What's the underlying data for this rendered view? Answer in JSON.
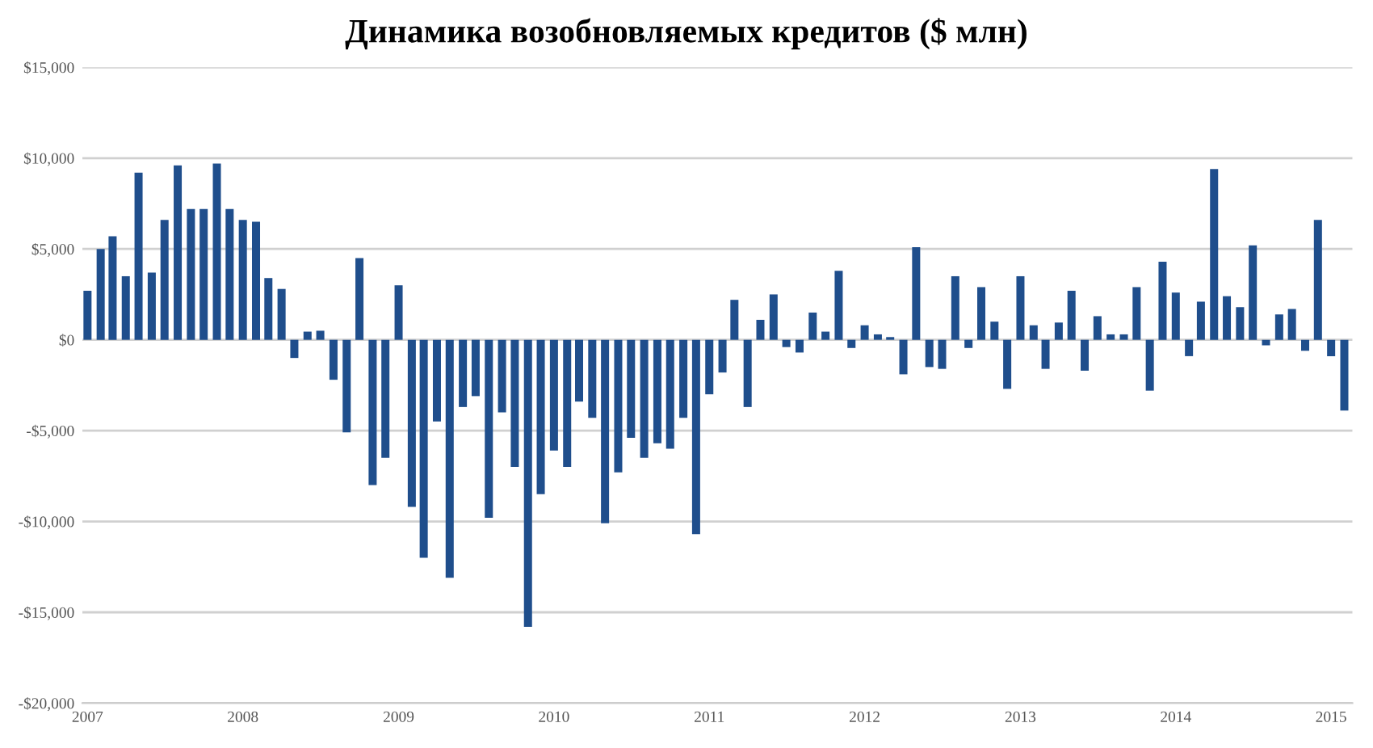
{
  "chart_data": {
    "type": "bar",
    "title": "Динамика возобновляемых кредитов ($ млн)",
    "x": [
      "2007-01",
      "2007-02",
      "2007-03",
      "2007-04",
      "2007-05",
      "2007-06",
      "2007-07",
      "2007-08",
      "2007-09",
      "2007-10",
      "2007-11",
      "2007-12",
      "2008-01",
      "2008-02",
      "2008-03",
      "2008-04",
      "2008-05",
      "2008-06",
      "2008-07",
      "2008-08",
      "2008-09",
      "2008-10",
      "2008-11",
      "2008-12",
      "2009-01",
      "2009-02",
      "2009-03",
      "2009-04",
      "2009-05",
      "2009-06",
      "2009-07",
      "2009-08",
      "2009-09",
      "2009-10",
      "2009-11",
      "2009-12",
      "2010-01",
      "2010-02",
      "2010-03",
      "2010-04",
      "2010-05",
      "2010-06",
      "2010-07",
      "2010-08",
      "2010-09",
      "2010-10",
      "2010-11",
      "2010-12",
      "2011-01",
      "2011-02",
      "2011-03",
      "2011-04",
      "2011-05",
      "2011-06",
      "2011-07",
      "2011-08",
      "2011-09",
      "2011-10",
      "2011-11",
      "2011-12",
      "2012-01",
      "2012-02",
      "2012-03",
      "2012-04",
      "2012-05",
      "2012-06",
      "2012-07",
      "2012-08",
      "2012-09",
      "2012-10",
      "2012-11",
      "2012-12",
      "2013-01",
      "2013-02",
      "2013-03",
      "2013-04",
      "2013-05",
      "2013-06",
      "2013-07",
      "2013-08",
      "2013-09",
      "2013-10",
      "2013-11",
      "2013-12",
      "2014-01",
      "2014-02",
      "2014-03",
      "2014-04",
      "2014-05",
      "2014-06",
      "2014-07",
      "2014-08",
      "2014-09",
      "2014-10",
      "2014-11",
      "2014-12",
      "2015-01",
      "2015-02"
    ],
    "series": [
      {
        "color": "#1f4e8c",
        "values": [
          2700,
          5000,
          5700,
          3500,
          9200,
          3700,
          6600,
          9600,
          7200,
          7200,
          9700,
          7200,
          6600,
          6500,
          3400,
          2800,
          -1000,
          450,
          500,
          -2200,
          -5100,
          4500,
          -8000,
          -6500,
          3000,
          -9200,
          -12000,
          -4500,
          -13100,
          -3700,
          -3100,
          -9800,
          -4000,
          -7000,
          -15800,
          -8500,
          -6100,
          -7000,
          -3400,
          -4300,
          -10100,
          -7300,
          -5400,
          -6500,
          -5700,
          -6000,
          -4300,
          -10700,
          -3000,
          -1800,
          2200,
          -3700,
          1100,
          2500,
          -400,
          -700,
          1500,
          450,
          3800,
          -450,
          800,
          300,
          150,
          -1900,
          5100,
          -1500,
          -1600,
          3500,
          -450,
          2900,
          1000,
          -2700,
          3500,
          800,
          -1600,
          950,
          2700,
          -1700,
          1300,
          300,
          300,
          2900,
          -2800,
          4300,
          2600,
          -900,
          2100,
          9400,
          2400,
          1800,
          5200,
          -300,
          1400,
          1700,
          -600,
          6600,
          -900,
          -3900
        ]
      }
    ],
    "ylim": [
      -20000,
      15000
    ],
    "yticks": [
      {
        "value": -20000,
        "label": "-$20,000"
      },
      {
        "value": -15000,
        "label": "-$15,000"
      },
      {
        "value": -10000,
        "label": "-$10,000"
      },
      {
        "value": -5000,
        "label": "-$5,000"
      },
      {
        "value": 0,
        "label": "$0"
      },
      {
        "value": 5000,
        "label": "$5,000"
      },
      {
        "value": 10000,
        "label": "$10,000"
      },
      {
        "value": 15000,
        "label": "$15,000"
      }
    ],
    "xlim": [
      "2006-12-20",
      "2015-02-20"
    ],
    "xticks": [
      {
        "value": "2007-01",
        "label": "2007"
      },
      {
        "value": "2008-01",
        "label": "2008"
      },
      {
        "value": "2009-01",
        "label": "2009"
      },
      {
        "value": "2010-01",
        "label": "2010"
      },
      {
        "value": "2011-01",
        "label": "2011"
      },
      {
        "value": "2012-01",
        "label": "2012"
      },
      {
        "value": "2013-01",
        "label": "2013"
      },
      {
        "value": "2014-01",
        "label": "2014"
      },
      {
        "value": "2015-01",
        "label": "2015"
      }
    ],
    "grid": "y",
    "legend": false
  }
}
